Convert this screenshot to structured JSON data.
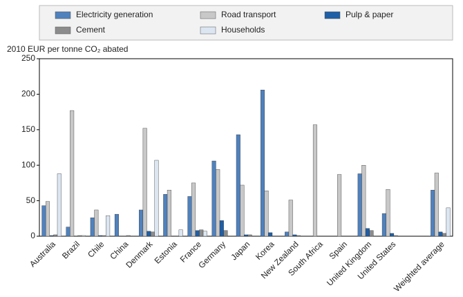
{
  "chart_data": {
    "type": "bar",
    "y_label": "2010 EUR per tonne CO₂ abated",
    "categories": [
      "Australia",
      "Brazil",
      "Chile",
      "China",
      "Denmark",
      "Estonia",
      "France",
      "Germany",
      "Japan",
      "Korea",
      "New Zealand",
      "South Africa",
      "Spain",
      "United Kingdom",
      "United States",
      null,
      "Weighted average"
    ],
    "series": [
      {
        "name": "Electricity generation",
        "color": "#4f81bd",
        "values": [
          43,
          13,
          26,
          31,
          37,
          59,
          56,
          106,
          143,
          206,
          6,
          null,
          null,
          88,
          32,
          null,
          65
        ]
      },
      {
        "name": "Road transport",
        "color": "#c8c8c8",
        "values": [
          49,
          177,
          37,
          null,
          152,
          65,
          75,
          94,
          72,
          64,
          51,
          157,
          87,
          100,
          66,
          null,
          89
        ]
      },
      {
        "name": "Pulp & paper",
        "color": "#1f5fa6",
        "values": [
          1,
          0,
          1,
          0,
          7,
          null,
          8,
          22,
          2,
          5,
          2,
          null,
          null,
          11,
          4,
          null,
          6
        ]
      },
      {
        "name": "Cement",
        "color": "#8c8c8c",
        "values": [
          2,
          1,
          1,
          1,
          6,
          null,
          9,
          8,
          2,
          null,
          1,
          null,
          null,
          8,
          1,
          null,
          4
        ]
      },
      {
        "name": "Households",
        "color": "#dce6f2",
        "values": [
          88,
          1,
          29,
          null,
          107,
          9,
          7,
          null,
          null,
          null,
          null,
          null,
          null,
          null,
          null,
          null,
          40
        ]
      }
    ],
    "ylim": [
      0,
      250
    ],
    "yticks": [
      0,
      50,
      100,
      150,
      200,
      250
    ],
    "legend": "top"
  }
}
